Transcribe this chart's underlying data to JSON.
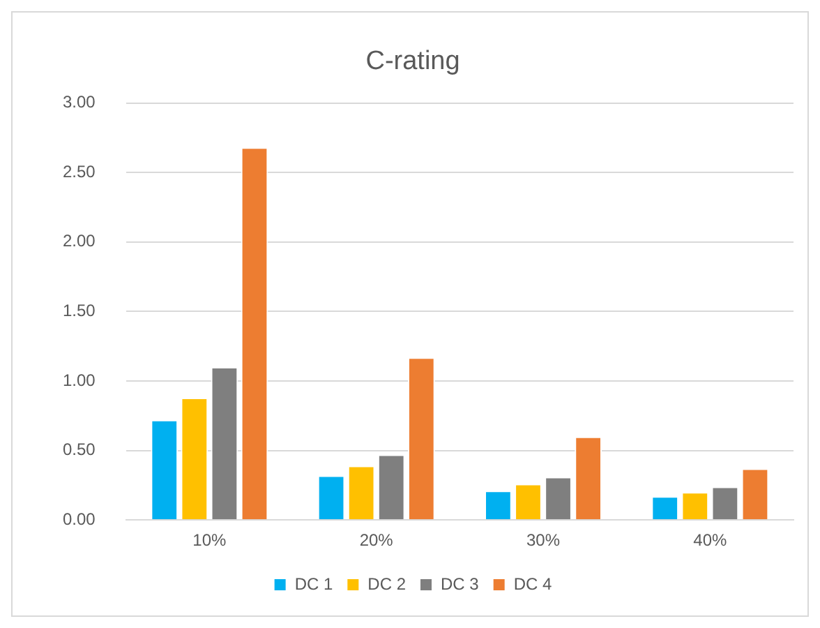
{
  "chart_data": {
    "type": "bar",
    "title": "C-rating",
    "categories": [
      "10%",
      "20%",
      "30%",
      "40%"
    ],
    "series": [
      {
        "name": "DC 1",
        "color": "#00b0f0",
        "values": [
          0.72,
          0.32,
          0.21,
          0.17
        ]
      },
      {
        "name": "DC 2",
        "color": "#ffc000",
        "values": [
          0.88,
          0.39,
          0.26,
          0.2
        ]
      },
      {
        "name": "DC 3",
        "color": "#7f7f7f",
        "values": [
          1.1,
          0.47,
          0.31,
          0.24
        ]
      },
      {
        "name": "DC 4",
        "color": "#ed7d31",
        "values": [
          2.68,
          1.17,
          0.6,
          0.37
        ]
      }
    ],
    "ylim": [
      0,
      3
    ],
    "yticks": [
      {
        "value": 0,
        "label": "0.00"
      },
      {
        "value": 0.5,
        "label": "0.50"
      },
      {
        "value": 1,
        "label": "1.00"
      },
      {
        "value": 1.5,
        "label": "1.50"
      },
      {
        "value": 2,
        "label": "2.00"
      },
      {
        "value": 2.5,
        "label": "2.50"
      },
      {
        "value": 3,
        "label": "3.00"
      }
    ],
    "grid": "y",
    "legend": "bottom"
  }
}
